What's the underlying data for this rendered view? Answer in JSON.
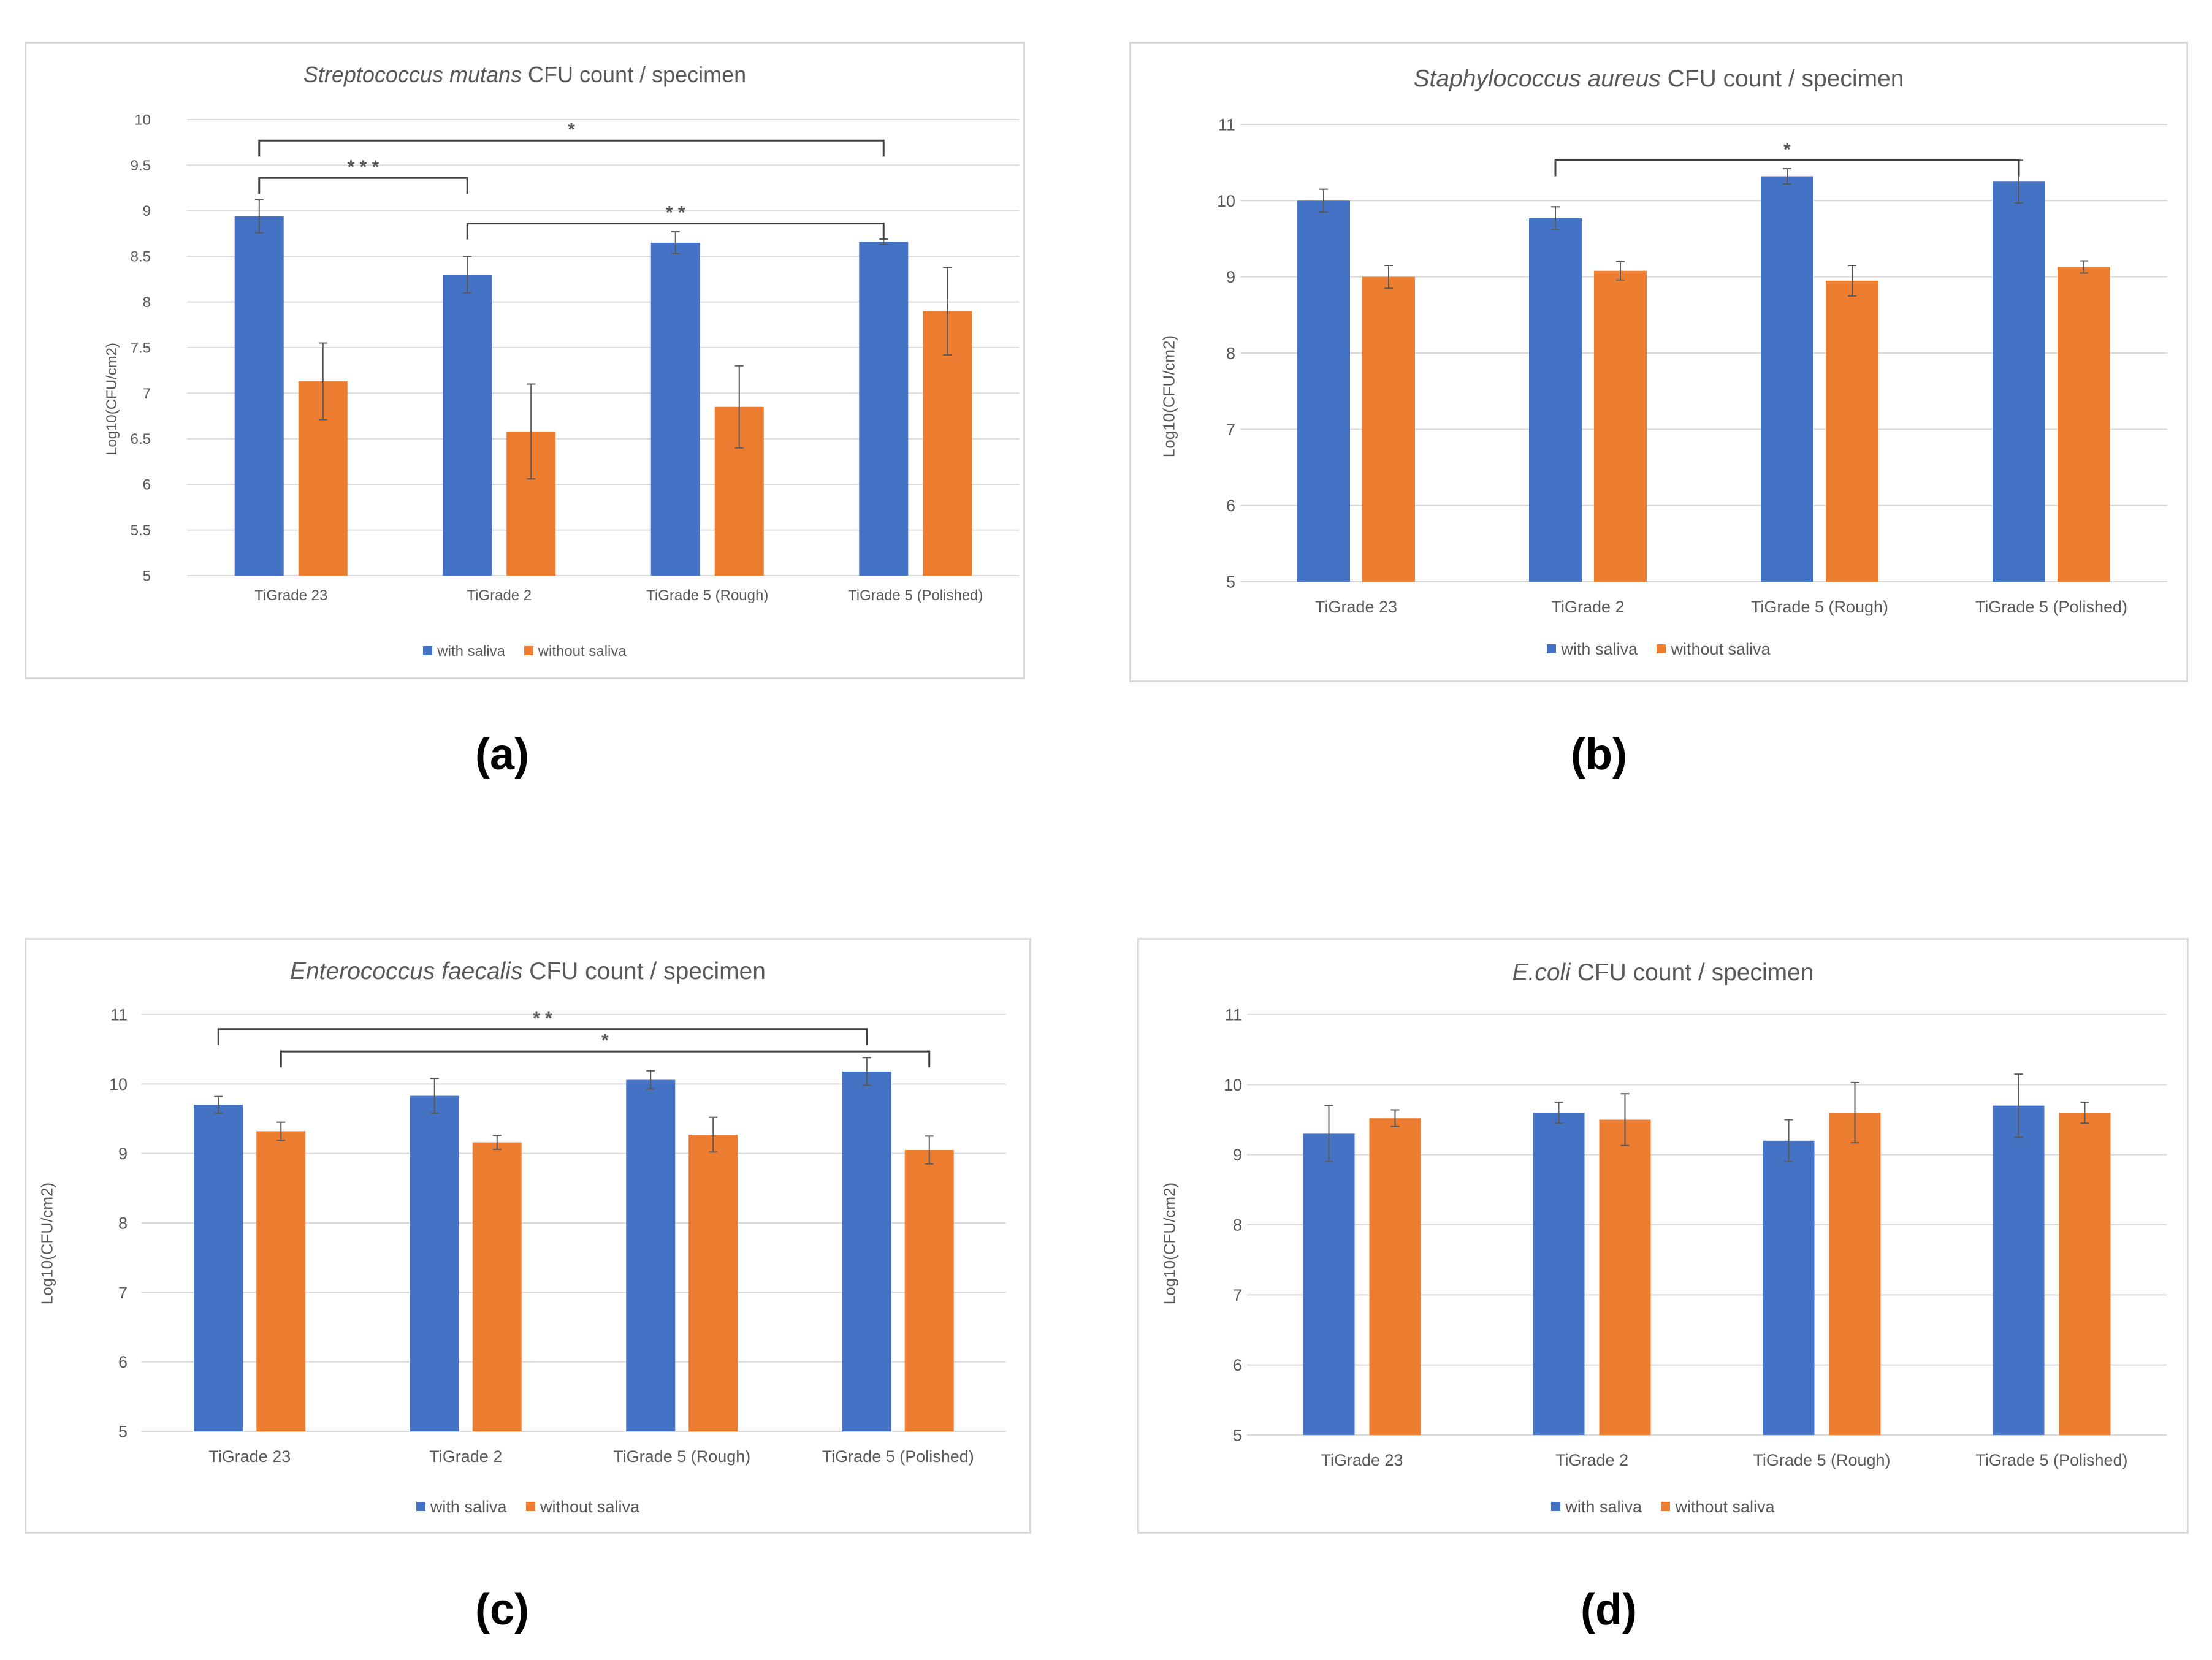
{
  "figure": {
    "legend": {
      "with_label": "with saliva",
      "without_label": "without saliva"
    },
    "colors": {
      "with": "#4472C4",
      "without": "#ED7D31",
      "grid": "#d9d9d9",
      "text": "#595959",
      "bracket": "#404040"
    },
    "captions": {
      "a": "(a)",
      "b": "(b)",
      "c": "(c)",
      "d": "(d)"
    }
  },
  "chart_data": [
    {
      "id": "a",
      "type": "bar",
      "title_italic": "Streptococcus mutans",
      "title_rest": " CFU count / specimen",
      "ylabel": "Log10(CFU/cm2)",
      "ylim": [
        5,
        10
      ],
      "ytick_step": 0.5,
      "ytick_labels": [
        "5",
        "5.5",
        "6",
        "6.5",
        "7",
        "7.5",
        "8",
        "8.5",
        "9",
        "9.5",
        "10"
      ],
      "categories": [
        "TiGrade 23",
        "TiGrade 2",
        "TiGrade 5 (Rough)",
        "TiGrade 5  (Polished)"
      ],
      "series": [
        {
          "name": "with saliva",
          "values": [
            8.94,
            8.3,
            8.65,
            8.66
          ],
          "errors": [
            0.18,
            0.2,
            0.12,
            0.03
          ]
        },
        {
          "name": "without saliva",
          "values": [
            7.13,
            6.58,
            6.85,
            7.9
          ],
          "errors": [
            0.42,
            0.52,
            0.45,
            0.48
          ]
        }
      ],
      "significance": [
        {
          "label": "* * *",
          "from": 0,
          "to": 1,
          "series": 0,
          "level": 9.36
        },
        {
          "label": "*",
          "from": 0,
          "to": 3,
          "series": 0,
          "level": 9.77
        },
        {
          "label": "* *",
          "from": 1,
          "to": 3,
          "series": 0,
          "level": 8.86
        }
      ],
      "legend_position": "bottom",
      "grid": true
    },
    {
      "id": "b",
      "type": "bar",
      "title_italic": "Staphylococcus aureus",
      "title_rest": " CFU count / specimen",
      "ylabel": "Log10(CFU/cm2)",
      "ylim": [
        5,
        11
      ],
      "ytick_step": 1,
      "ytick_labels": [
        "5",
        "6",
        "7",
        "8",
        "9",
        "10",
        "11"
      ],
      "categories": [
        "TiGrade 23",
        "TiGrade 2",
        "TiGrade 5 (Rough)",
        "TiGrade 5  (Polished)"
      ],
      "series": [
        {
          "name": "with saliva",
          "values": [
            10.0,
            9.77,
            10.32,
            10.25
          ],
          "errors": [
            0.15,
            0.15,
            0.1,
            0.28
          ]
        },
        {
          "name": "without saliva",
          "values": [
            9.0,
            9.08,
            8.95,
            9.13
          ],
          "errors": [
            0.15,
            0.12,
            0.2,
            0.08
          ]
        }
      ],
      "significance": [
        {
          "label": "*",
          "from": 1,
          "to": 3,
          "series": 0,
          "level": 10.53
        }
      ],
      "legend_position": "bottom",
      "grid": true
    },
    {
      "id": "c",
      "type": "bar",
      "title_italic": "Enterococcus faecalis",
      "title_rest": " CFU count / specimen",
      "ylabel": "Log10(CFU/cm2)",
      "ylim": [
        5,
        11
      ],
      "ytick_step": 1,
      "ytick_labels": [
        "5",
        "6",
        "7",
        "8",
        "9",
        "10",
        "11"
      ],
      "categories": [
        "TiGrade 23",
        "TiGrade 2",
        "TiGrade 5 (Rough)",
        "TiGrade 5  (Polished)"
      ],
      "series": [
        {
          "name": "with saliva",
          "values": [
            9.7,
            9.83,
            10.06,
            10.18
          ],
          "errors": [
            0.12,
            0.25,
            0.13,
            0.2
          ]
        },
        {
          "name": "without saliva",
          "values": [
            9.32,
            9.16,
            9.27,
            9.05
          ],
          "errors": [
            0.13,
            0.1,
            0.25,
            0.2
          ]
        }
      ],
      "significance": [
        {
          "label": "* *",
          "from": 0,
          "to": 3,
          "series": 0,
          "level": 10.79
        },
        {
          "label": "*",
          "from": 0,
          "to": 3,
          "series": 1,
          "from_series": 1,
          "level": 10.47
        }
      ],
      "legend_position": "bottom",
      "grid": true
    },
    {
      "id": "d",
      "type": "bar",
      "title_italic": "E.coli",
      "title_rest": " CFU count / specimen",
      "ylabel": "Log10(CFU/cm2)",
      "ylim": [
        5,
        11
      ],
      "ytick_step": 1,
      "ytick_labels": [
        "5",
        "6",
        "7",
        "8",
        "9",
        "10",
        "11"
      ],
      "categories": [
        "TiGrade 23",
        "TiGrade 2",
        "TiGrade 5 (Rough)",
        "TiGrade 5  (Polished)"
      ],
      "series": [
        {
          "name": "with saliva",
          "values": [
            9.3,
            9.6,
            9.2,
            9.7
          ],
          "errors": [
            0.4,
            0.15,
            0.3,
            0.45
          ]
        },
        {
          "name": "without saliva",
          "values": [
            9.52,
            9.5,
            9.6,
            9.6
          ],
          "errors": [
            0.12,
            0.37,
            0.43,
            0.15
          ]
        }
      ],
      "significance": [],
      "legend_position": "bottom",
      "grid": true
    }
  ]
}
